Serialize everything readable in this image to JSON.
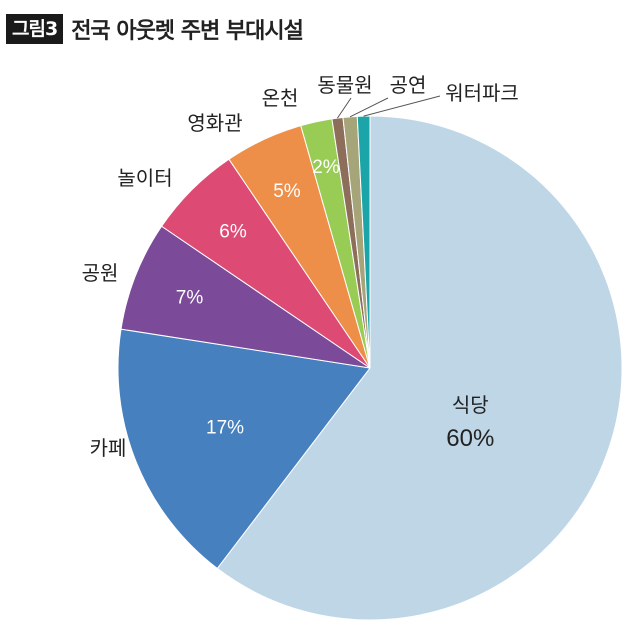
{
  "figure": {
    "badge": "그림3",
    "title": "전국 아웃렛 주변 부대시설"
  },
  "chart_data": {
    "type": "pie",
    "slices": [
      {
        "label": "식당",
        "value": 60,
        "value_label": "60%",
        "color": "#bfd6e7"
      },
      {
        "label": "카페",
        "value": 17,
        "value_label": "17%",
        "color": "#4680bf"
      },
      {
        "label": "공원",
        "value": 7,
        "value_label": "7%",
        "color": "#7b4a99"
      },
      {
        "label": "놀이터",
        "value": 6,
        "value_label": "6%",
        "color": "#dd4b75"
      },
      {
        "label": "영화관",
        "value": 5,
        "value_label": "5%",
        "color": "#ee8f49"
      },
      {
        "label": "온천",
        "value": 2,
        "value_label": "2%",
        "color": "#99cc55"
      },
      {
        "label": "동물원",
        "value": 0.7,
        "value_label": "",
        "color": "#8d6e5a"
      },
      {
        "label": "공연",
        "value": 0.9,
        "value_label": "",
        "color": "#a6a57a"
      },
      {
        "label": "워터파크",
        "value": 0.8,
        "value_label": "",
        "color": "#1ca5a8"
      }
    ]
  }
}
